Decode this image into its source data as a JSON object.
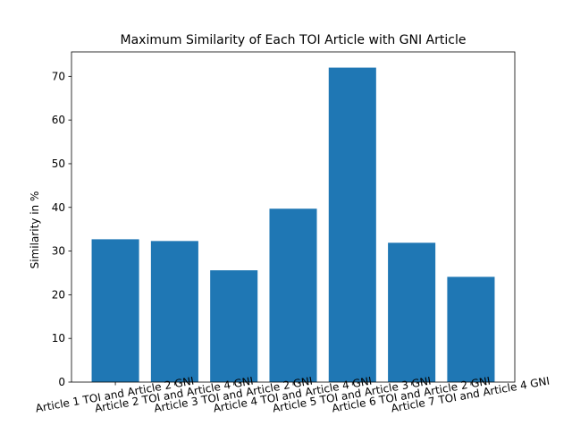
{
  "chart_data": {
    "type": "bar",
    "title": "Maximum Similarity of Each TOI Article with GNI Article",
    "xlabel": "",
    "ylabel": "Similarity in %",
    "categories": [
      "Article 1 TOI and Article 2 GNI",
      "Article 2 TOI and Article 4 GNI",
      "Article 3 TOI and Article 2 GNI",
      "Article 4 TOI and Article 4 GNI",
      "Article 5 TOI and Article 3 GNI",
      "Article 6 TOI and Article 2 GNI",
      "Article 7 TOI and Article 4 GNI"
    ],
    "values": [
      32.7,
      32.3,
      25.6,
      39.7,
      72.0,
      31.9,
      24.1
    ],
    "ylim": [
      0,
      75.6
    ],
    "yticks": [
      0,
      10,
      20,
      30,
      40,
      50,
      60,
      70
    ],
    "grid": false,
    "bar_color": "#1f77b4"
  }
}
